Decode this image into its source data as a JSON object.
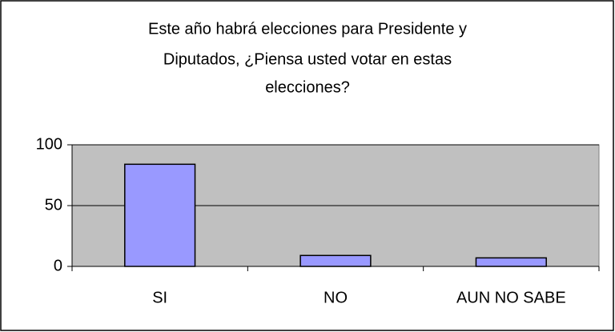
{
  "chart_data": {
    "type": "bar",
    "title": [
      "Este año habrá elecciones para Presidente y",
      "Diputados, ¿Piensa usted votar en estas",
      "elecciones?"
    ],
    "categories": [
      "SI",
      "NO",
      "AUN NO SABE"
    ],
    "values": [
      84,
      9,
      7
    ],
    "color": "#9999ff",
    "ylim": [
      0,
      100
    ],
    "yticks": [
      0,
      50,
      100
    ],
    "grid": true
  }
}
